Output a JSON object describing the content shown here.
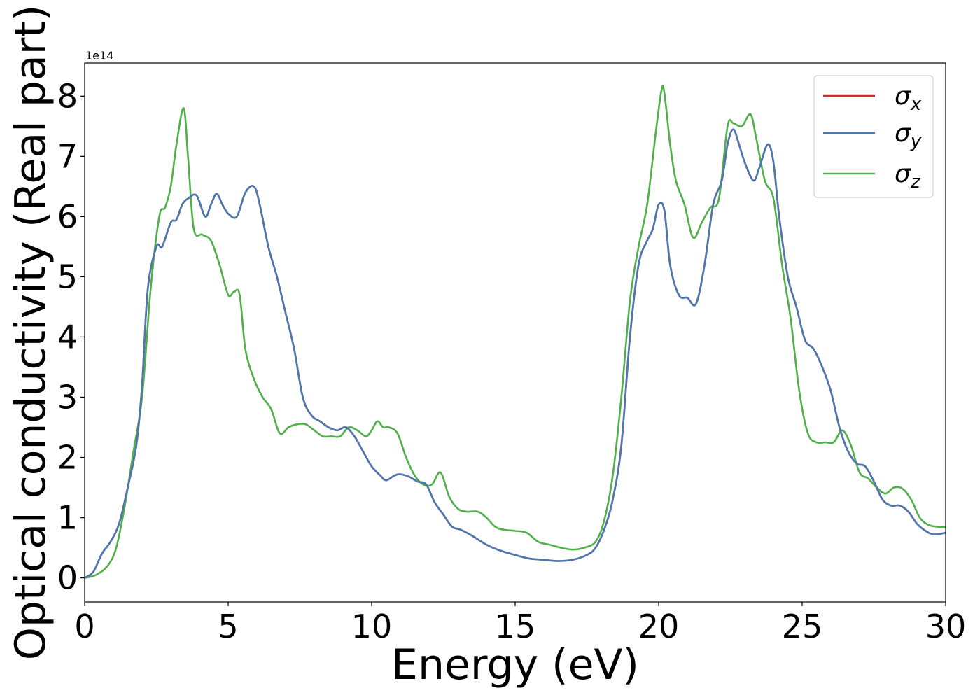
{
  "chart_data": {
    "type": "line",
    "title": "",
    "xlabel": "Energy (eV)",
    "ylabel": "Optical conductivity (Real part)",
    "y_offset_label": "1e14",
    "xlim": [
      0,
      30
    ],
    "ylim": [
      -0.4,
      8.55
    ],
    "x_ticks": [
      0,
      5,
      10,
      15,
      20,
      25,
      30
    ],
    "x_tick_labels": [
      "0",
      "5",
      "10",
      "15",
      "20",
      "25",
      "30"
    ],
    "y_ticks": [
      0,
      1,
      2,
      3,
      4,
      5,
      6,
      7,
      8
    ],
    "y_tick_labels": [
      "0",
      "1",
      "2",
      "3",
      "4",
      "5",
      "6",
      "7",
      "8"
    ],
    "grid": false,
    "legend_position": "top-right",
    "colors": {
      "x": "#d62728",
      "y": "#4a78b0",
      "z": "#4fb04a"
    },
    "series": [
      {
        "key": "x",
        "name": "σx",
        "legend_main": "σ",
        "legend_sub": "x",
        "color": "#d62728",
        "x": [
          0,
          0.3,
          0.6,
          0.9,
          1.2,
          1.5,
          1.8,
          2.0,
          2.2,
          2.5,
          2.7,
          3.0,
          3.2,
          3.4,
          3.6,
          3.9,
          4.2,
          4.4,
          4.6,
          4.8,
          5.0,
          5.3,
          5.6,
          5.9,
          6.1,
          6.4,
          6.7,
          7.0,
          7.3,
          7.6,
          7.9,
          8.2,
          8.5,
          8.8,
          9.1,
          9.4,
          9.7,
          10.0,
          10.3,
          10.5,
          10.8,
          11.0,
          11.3,
          11.6,
          11.9,
          12.2,
          12.5,
          12.8,
          13.1,
          13.5,
          14.0,
          14.5,
          15.0,
          15.5,
          16.0,
          16.5,
          17.0,
          17.5,
          17.8,
          18.1,
          18.4,
          18.7,
          19.0,
          19.3,
          19.6,
          19.8,
          20.0,
          20.2,
          20.4,
          20.7,
          21.0,
          21.3,
          21.6,
          21.9,
          22.2,
          22.4,
          22.6,
          22.8,
          23.0,
          23.3,
          23.5,
          23.8,
          24.0,
          24.2,
          24.5,
          24.8,
          25.1,
          25.4,
          25.7,
          26.0,
          26.3,
          26.6,
          26.9,
          27.2,
          27.5,
          27.8,
          28.1,
          28.4,
          28.7,
          29.0,
          29.3,
          29.6,
          30.0
        ],
        "values": [
          0.0,
          0.1,
          0.4,
          0.6,
          0.9,
          1.5,
          2.2,
          3.2,
          4.8,
          5.5,
          5.5,
          5.9,
          5.95,
          6.2,
          6.3,
          6.35,
          6.0,
          6.2,
          6.38,
          6.2,
          6.05,
          6.0,
          6.4,
          6.5,
          6.2,
          5.5,
          5.0,
          4.4,
          3.8,
          3.0,
          2.7,
          2.6,
          2.5,
          2.45,
          2.5,
          2.35,
          2.1,
          1.85,
          1.7,
          1.62,
          1.7,
          1.72,
          1.68,
          1.6,
          1.55,
          1.25,
          1.05,
          0.85,
          0.8,
          0.7,
          0.55,
          0.45,
          0.38,
          0.32,
          0.3,
          0.28,
          0.3,
          0.38,
          0.5,
          0.8,
          1.3,
          2.2,
          4.0,
          5.2,
          5.6,
          5.8,
          6.2,
          6.1,
          5.2,
          4.7,
          4.65,
          4.55,
          5.2,
          6.2,
          6.6,
          7.2,
          7.45,
          7.2,
          6.9,
          6.6,
          6.8,
          7.2,
          6.9,
          6.0,
          5.0,
          4.5,
          3.95,
          3.8,
          3.5,
          3.1,
          2.5,
          2.1,
          1.9,
          1.85,
          1.6,
          1.3,
          1.2,
          1.2,
          1.1,
          0.9,
          0.78,
          0.72,
          0.75
        ]
      },
      {
        "key": "y",
        "name": "σy",
        "legend_main": "σ",
        "legend_sub": "y",
        "color": "#4a78b0",
        "x": [
          0,
          0.3,
          0.6,
          0.9,
          1.2,
          1.5,
          1.8,
          2.0,
          2.2,
          2.5,
          2.7,
          3.0,
          3.2,
          3.4,
          3.6,
          3.9,
          4.2,
          4.4,
          4.6,
          4.8,
          5.0,
          5.3,
          5.6,
          5.9,
          6.1,
          6.4,
          6.7,
          7.0,
          7.3,
          7.6,
          7.9,
          8.2,
          8.5,
          8.8,
          9.1,
          9.4,
          9.7,
          10.0,
          10.3,
          10.5,
          10.8,
          11.0,
          11.3,
          11.6,
          11.9,
          12.2,
          12.5,
          12.8,
          13.1,
          13.5,
          14.0,
          14.5,
          15.0,
          15.5,
          16.0,
          16.5,
          17.0,
          17.5,
          17.8,
          18.1,
          18.4,
          18.7,
          19.0,
          19.3,
          19.6,
          19.8,
          20.0,
          20.2,
          20.4,
          20.7,
          21.0,
          21.3,
          21.6,
          21.9,
          22.2,
          22.4,
          22.6,
          22.8,
          23.0,
          23.3,
          23.5,
          23.8,
          24.0,
          24.2,
          24.5,
          24.8,
          25.1,
          25.4,
          25.7,
          26.0,
          26.3,
          26.6,
          26.9,
          27.2,
          27.5,
          27.8,
          28.1,
          28.4,
          28.7,
          29.0,
          29.3,
          29.6,
          30.0
        ],
        "values": [
          0.0,
          0.1,
          0.4,
          0.6,
          0.9,
          1.5,
          2.2,
          3.2,
          4.8,
          5.5,
          5.5,
          5.9,
          5.95,
          6.2,
          6.3,
          6.35,
          6.0,
          6.2,
          6.38,
          6.2,
          6.05,
          6.0,
          6.4,
          6.5,
          6.2,
          5.5,
          5.0,
          4.4,
          3.8,
          3.0,
          2.7,
          2.6,
          2.5,
          2.45,
          2.5,
          2.35,
          2.1,
          1.85,
          1.7,
          1.62,
          1.7,
          1.72,
          1.68,
          1.6,
          1.55,
          1.25,
          1.05,
          0.85,
          0.8,
          0.7,
          0.55,
          0.45,
          0.38,
          0.32,
          0.3,
          0.28,
          0.3,
          0.38,
          0.5,
          0.8,
          1.3,
          2.2,
          4.0,
          5.2,
          5.6,
          5.8,
          6.2,
          6.1,
          5.2,
          4.7,
          4.65,
          4.55,
          5.2,
          6.2,
          6.6,
          7.2,
          7.45,
          7.2,
          6.9,
          6.6,
          6.8,
          7.2,
          6.9,
          6.0,
          5.0,
          4.5,
          3.95,
          3.8,
          3.5,
          3.1,
          2.5,
          2.1,
          1.9,
          1.85,
          1.6,
          1.3,
          1.2,
          1.2,
          1.1,
          0.9,
          0.78,
          0.72,
          0.75
        ]
      },
      {
        "key": "z",
        "name": "σz",
        "legend_main": "σ",
        "legend_sub": "z",
        "color": "#4fb04a",
        "x": [
          0,
          0.4,
          0.8,
          1.1,
          1.4,
          1.7,
          2.0,
          2.3,
          2.6,
          2.8,
          3.0,
          3.2,
          3.45,
          3.6,
          3.8,
          4.1,
          4.4,
          4.7,
          5.0,
          5.2,
          5.4,
          5.6,
          5.9,
          6.2,
          6.5,
          6.8,
          7.1,
          7.4,
          7.7,
          8.0,
          8.3,
          8.6,
          8.9,
          9.2,
          9.5,
          9.8,
          10.0,
          10.2,
          10.4,
          10.6,
          10.9,
          11.2,
          11.5,
          11.8,
          12.1,
          12.4,
          12.7,
          13.0,
          13.3,
          13.7,
          14.0,
          14.3,
          14.6,
          15.0,
          15.4,
          15.8,
          16.2,
          16.6,
          17.0,
          17.4,
          17.8,
          18.1,
          18.4,
          18.7,
          19.0,
          19.3,
          19.6,
          19.9,
          20.1,
          20.2,
          20.4,
          20.6,
          20.9,
          21.2,
          21.5,
          21.8,
          22.1,
          22.4,
          22.6,
          22.9,
          23.2,
          23.4,
          23.7,
          24.0,
          24.3,
          24.6,
          24.9,
          25.2,
          25.5,
          25.8,
          26.1,
          26.4,
          26.7,
          27.0,
          27.3,
          27.6,
          27.9,
          28.2,
          28.5,
          28.8,
          29.1,
          29.4,
          29.7,
          30.0
        ],
        "values": [
          0.0,
          0.05,
          0.2,
          0.5,
          1.2,
          2.1,
          3.0,
          4.8,
          6.0,
          6.15,
          6.5,
          7.2,
          7.8,
          7.0,
          5.8,
          5.7,
          5.6,
          5.2,
          4.7,
          4.75,
          4.7,
          3.8,
          3.3,
          3.0,
          2.8,
          2.4,
          2.5,
          2.55,
          2.55,
          2.45,
          2.35,
          2.35,
          2.35,
          2.5,
          2.45,
          2.35,
          2.45,
          2.6,
          2.5,
          2.5,
          2.4,
          2.0,
          1.7,
          1.55,
          1.55,
          1.75,
          1.35,
          1.15,
          1.1,
          1.1,
          1.0,
          0.85,
          0.8,
          0.78,
          0.75,
          0.6,
          0.55,
          0.5,
          0.47,
          0.5,
          0.6,
          0.95,
          1.7,
          3.0,
          4.6,
          5.5,
          6.2,
          7.4,
          8.1,
          8.05,
          7.2,
          6.6,
          6.2,
          5.65,
          5.9,
          6.15,
          6.3,
          7.5,
          7.55,
          7.5,
          7.7,
          7.3,
          6.6,
          6.3,
          5.2,
          4.3,
          3.1,
          2.4,
          2.25,
          2.25,
          2.25,
          2.45,
          2.2,
          1.75,
          1.65,
          1.5,
          1.4,
          1.5,
          1.48,
          1.3,
          1.0,
          0.88,
          0.85,
          0.84
        ]
      }
    ]
  }
}
